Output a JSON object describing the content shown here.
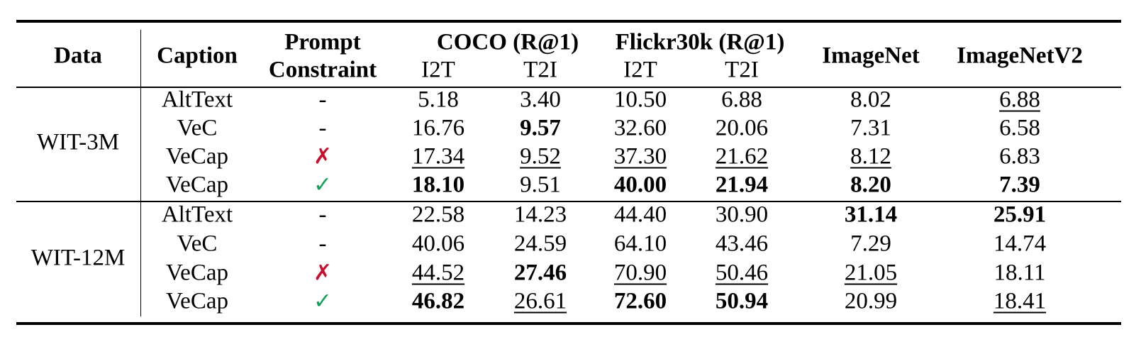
{
  "headers": {
    "data": "Data",
    "caption": "Caption",
    "prompt_line1": "Prompt",
    "prompt_line2": "Constraint",
    "coco": "COCO (R@1)",
    "flickr": "Flickr30k (R@1)",
    "imagenet": "ImageNet",
    "imagenetv2": "ImageNetV2",
    "coco_i2t": "I2T",
    "coco_t2i": "T2I",
    "flickr_i2t": "I2T",
    "flickr_t2i": "T2I"
  },
  "groups": [
    {
      "data": "WIT-3M",
      "rows": [
        {
          "caption": "AltText",
          "prompt": "-",
          "values": [
            "5.18",
            "3.40",
            "10.50",
            "6.88",
            "8.02",
            "6.88"
          ],
          "bold": [
            false,
            false,
            false,
            false,
            false,
            false
          ],
          "underline": [
            false,
            false,
            false,
            false,
            false,
            true
          ]
        },
        {
          "caption": "VeC",
          "prompt": "-",
          "values": [
            "16.76",
            "9.57",
            "32.60",
            "20.06",
            "7.31",
            "6.58"
          ],
          "bold": [
            false,
            true,
            false,
            false,
            false,
            false
          ],
          "underline": [
            false,
            false,
            false,
            false,
            false,
            false
          ]
        },
        {
          "caption": "VeCap",
          "prompt": "✗",
          "values": [
            "17.34",
            "9.52",
            "37.30",
            "21.62",
            "8.12",
            "6.83"
          ],
          "bold": [
            false,
            false,
            false,
            false,
            false,
            false
          ],
          "underline": [
            true,
            true,
            true,
            true,
            true,
            false
          ]
        },
        {
          "caption": "VeCap",
          "prompt": "✓",
          "values": [
            "18.10",
            "9.51",
            "40.00",
            "21.94",
            "8.20",
            "7.39"
          ],
          "bold": [
            true,
            false,
            true,
            true,
            true,
            true
          ],
          "underline": [
            false,
            false,
            false,
            false,
            false,
            false
          ]
        }
      ]
    },
    {
      "data": "WIT-12M",
      "rows": [
        {
          "caption": "AltText",
          "prompt": "-",
          "values": [
            "22.58",
            "14.23",
            "44.40",
            "30.90",
            "31.14",
            "25.91"
          ],
          "bold": [
            false,
            false,
            false,
            false,
            true,
            true
          ],
          "underline": [
            false,
            false,
            false,
            false,
            false,
            false
          ]
        },
        {
          "caption": "VeC",
          "prompt": "-",
          "values": [
            "40.06",
            "24.59",
            "64.10",
            "43.46",
            "7.29",
            "14.74"
          ],
          "bold": [
            false,
            false,
            false,
            false,
            false,
            false
          ],
          "underline": [
            false,
            false,
            false,
            false,
            false,
            false
          ]
        },
        {
          "caption": "VeCap",
          "prompt": "✗",
          "values": [
            "44.52",
            "27.46",
            "70.90",
            "50.46",
            "21.05",
            "18.11"
          ],
          "bold": [
            false,
            true,
            false,
            false,
            false,
            false
          ],
          "underline": [
            true,
            false,
            true,
            true,
            true,
            false
          ]
        },
        {
          "caption": "VeCap",
          "prompt": "✓",
          "values": [
            "46.82",
            "26.61",
            "72.60",
            "50.94",
            "20.99",
            "18.41"
          ],
          "bold": [
            true,
            false,
            true,
            true,
            false,
            false
          ],
          "underline": [
            false,
            true,
            false,
            false,
            false,
            true
          ]
        }
      ]
    }
  ],
  "colors": {
    "cross_mark": "#c8102e",
    "check_mark": "#12a25a",
    "text": "#000000"
  }
}
